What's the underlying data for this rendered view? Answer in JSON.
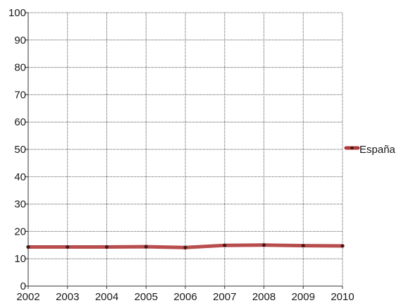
{
  "chart_data": {
    "type": "line",
    "x": [
      "2002",
      "2003",
      "2004",
      "2005",
      "2006",
      "2007",
      "2008",
      "2009",
      "2010"
    ],
    "series": [
      {
        "name": "España",
        "values": [
          14.3,
          14.3,
          14.3,
          14.4,
          14.1,
          14.9,
          15.0,
          14.8,
          14.7
        ]
      }
    ],
    "ylim": [
      0,
      100
    ],
    "yticks": [
      "0",
      "10",
      "20",
      "30",
      "40",
      "50",
      "60",
      "70",
      "80",
      "90",
      "100"
    ],
    "grid": true,
    "legend_position": "right",
    "colors": {
      "series": "#b03a3a",
      "marker": "#4a1818",
      "grid": "#555555",
      "axis": "#333333"
    }
  }
}
